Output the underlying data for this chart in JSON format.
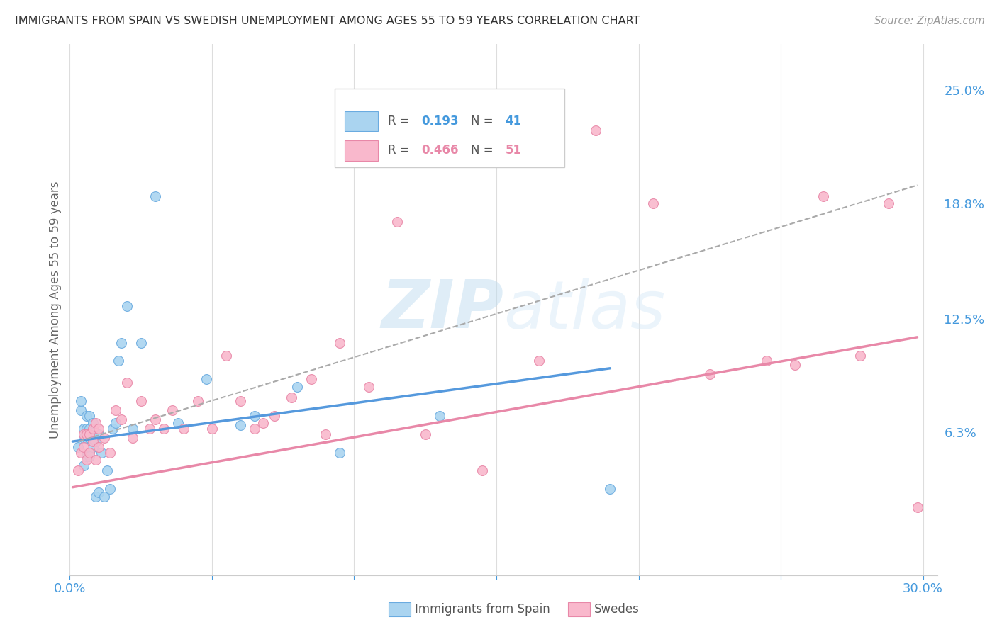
{
  "title": "IMMIGRANTS FROM SPAIN VS SWEDISH UNEMPLOYMENT AMONG AGES 55 TO 59 YEARS CORRELATION CHART",
  "source": "Source: ZipAtlas.com",
  "ylabel": "Unemployment Among Ages 55 to 59 years",
  "xlim": [
    0.0,
    0.305
  ],
  "ylim": [
    -0.015,
    0.275
  ],
  "xticks": [
    0.0,
    0.05,
    0.1,
    0.15,
    0.2,
    0.25,
    0.3
  ],
  "right_yticks": [
    0.063,
    0.125,
    0.188,
    0.25
  ],
  "right_yticklabels": [
    "6.3%",
    "12.5%",
    "18.8%",
    "25.0%"
  ],
  "blue_scatter_x": [
    0.003,
    0.004,
    0.004,
    0.005,
    0.005,
    0.005,
    0.006,
    0.006,
    0.006,
    0.006,
    0.007,
    0.007,
    0.007,
    0.007,
    0.008,
    0.008,
    0.008,
    0.009,
    0.009,
    0.01,
    0.01,
    0.011,
    0.012,
    0.013,
    0.014,
    0.015,
    0.016,
    0.017,
    0.018,
    0.02,
    0.022,
    0.025,
    0.03,
    0.038,
    0.048,
    0.06,
    0.065,
    0.08,
    0.095,
    0.13,
    0.19
  ],
  "blue_scatter_y": [
    0.055,
    0.075,
    0.08,
    0.045,
    0.06,
    0.065,
    0.05,
    0.06,
    0.065,
    0.072,
    0.05,
    0.06,
    0.065,
    0.072,
    0.055,
    0.06,
    0.068,
    0.028,
    0.058,
    0.03,
    0.062,
    0.052,
    0.028,
    0.042,
    0.032,
    0.065,
    0.068,
    0.102,
    0.112,
    0.132,
    0.065,
    0.112,
    0.192,
    0.068,
    0.092,
    0.067,
    0.072,
    0.088,
    0.052,
    0.072,
    0.032
  ],
  "pink_scatter_x": [
    0.003,
    0.004,
    0.005,
    0.005,
    0.006,
    0.006,
    0.007,
    0.007,
    0.008,
    0.008,
    0.009,
    0.009,
    0.01,
    0.01,
    0.012,
    0.014,
    0.016,
    0.018,
    0.02,
    0.022,
    0.025,
    0.028,
    0.03,
    0.033,
    0.036,
    0.04,
    0.045,
    0.05,
    0.055,
    0.06,
    0.065,
    0.068,
    0.072,
    0.078,
    0.085,
    0.09,
    0.095,
    0.105,
    0.115,
    0.125,
    0.145,
    0.165,
    0.185,
    0.205,
    0.225,
    0.245,
    0.255,
    0.265,
    0.278,
    0.288,
    0.298
  ],
  "pink_scatter_y": [
    0.042,
    0.052,
    0.055,
    0.062,
    0.048,
    0.062,
    0.052,
    0.062,
    0.058,
    0.065,
    0.048,
    0.068,
    0.055,
    0.065,
    0.06,
    0.052,
    0.075,
    0.07,
    0.09,
    0.06,
    0.08,
    0.065,
    0.07,
    0.065,
    0.075,
    0.065,
    0.08,
    0.065,
    0.105,
    0.08,
    0.065,
    0.068,
    0.072,
    0.082,
    0.092,
    0.062,
    0.112,
    0.088,
    0.178,
    0.062,
    0.042,
    0.102,
    0.228,
    0.188,
    0.095,
    0.102,
    0.1,
    0.192,
    0.105,
    0.188,
    0.022
  ],
  "blue_line_x": [
    0.001,
    0.19
  ],
  "blue_line_y": [
    0.058,
    0.098
  ],
  "pink_line_x": [
    0.001,
    0.298
  ],
  "pink_line_y": [
    0.033,
    0.115
  ],
  "dashed_line_x": [
    0.003,
    0.298
  ],
  "dashed_line_y": [
    0.058,
    0.198
  ],
  "watermark": "ZIPatlas",
  "bg_color": "#ffffff",
  "grid_color": "#dddddd",
  "title_color": "#333333",
  "blue_color": "#aad4f0",
  "blue_edge_color": "#6aabe0",
  "pink_color": "#f9b8cc",
  "pink_edge_color": "#e888a8",
  "blue_line_color": "#5599dd",
  "pink_line_color": "#e888a8",
  "dashed_line_color": "#aaaaaa",
  "right_label_color": "#4499dd",
  "axis_label_color": "#4499dd",
  "marker_size": 100
}
